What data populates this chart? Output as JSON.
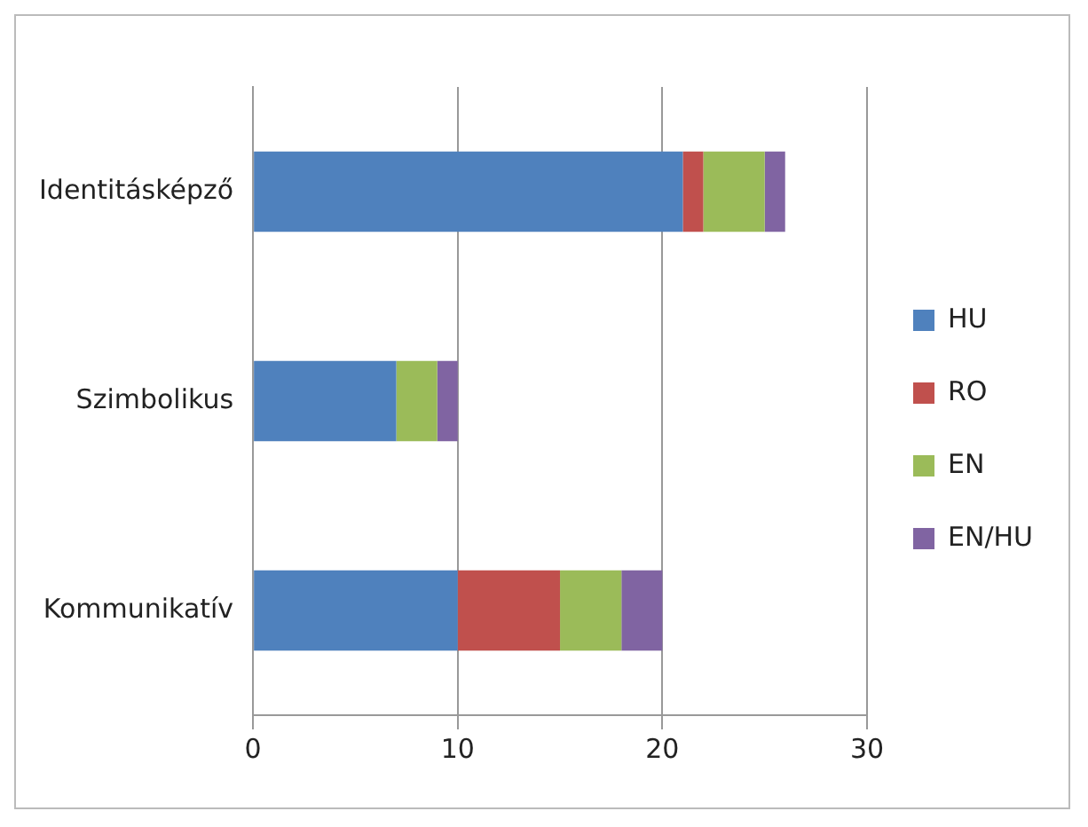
{
  "chart_data": {
    "type": "bar",
    "orientation": "horizontal",
    "stacked": true,
    "categories": [
      "Identitásképző",
      "Szimbolikus",
      "Kommunikatív"
    ],
    "series": [
      {
        "name": "HU",
        "color": "#4f81bd",
        "values": [
          21,
          7,
          10
        ]
      },
      {
        "name": "RO",
        "color": "#c0504d",
        "values": [
          1,
          0,
          5
        ]
      },
      {
        "name": "EN",
        "color": "#9bbb59",
        "values": [
          3,
          2,
          3
        ]
      },
      {
        "name": "EN/HU",
        "color": "#8064a2",
        "values": [
          1,
          1,
          2
        ]
      }
    ],
    "xlim": [
      0,
      30
    ],
    "xticks": [
      0,
      10,
      20,
      30
    ],
    "grid": "x",
    "legend": "right"
  }
}
